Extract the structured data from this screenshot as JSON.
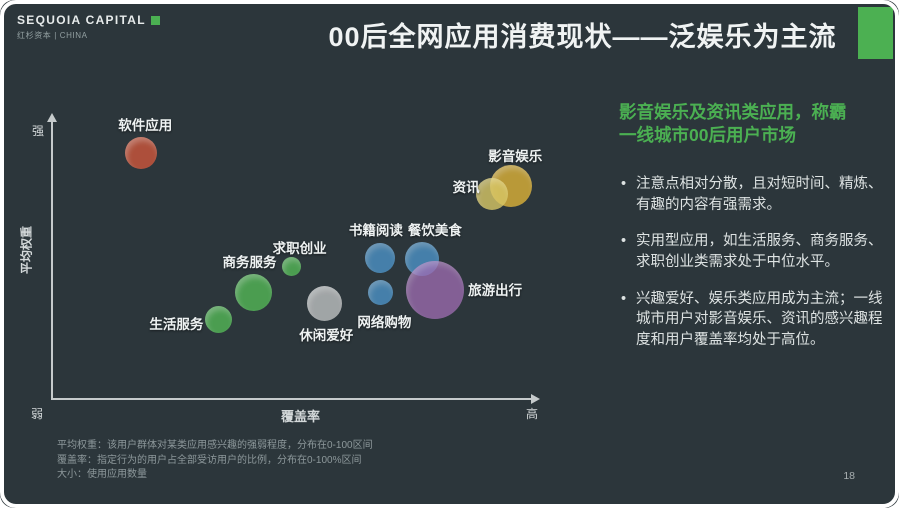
{
  "header": {
    "brand": "SEQUOIA CAPITAL",
    "brand_sub": "红杉资本 | CHINA",
    "title": "00后全网应用消费现状——泛娱乐为主流"
  },
  "page_number": "18",
  "accent": {
    "green": "#4bb052",
    "background": "#2c363b"
  },
  "right_panel": {
    "heading": "影音娱乐及资讯类应用，称霸\n一线城市00后用户市场",
    "bullets": [
      "注意点相对分散，且对短时间、精炼、有趣的内容有强需求。",
      "实用型应用，如生活服务、商务服务、求职创业类需求处于中位水平。",
      "兴趣爱好、娱乐类应用成为主流；一线城市用户对影音娱乐、资讯的感兴趣程度和用户覆盖率均处于高位。"
    ]
  },
  "footnotes": [
    "平均权重：该用户群体对某类应用感兴趣的强弱程度，分布在0-100区间",
    "覆盖率：指定行为的用户占全部受访用户的比例，分布在0-100%区间",
    "大小：使用应用数量"
  ],
  "chart_data": {
    "type": "scatter",
    "title": "00后全网应用消费现状——泛娱乐为主流",
    "xlabel": "覆盖率",
    "ylabel": "平均权重",
    "x_range": [
      0,
      100
    ],
    "y_range": [
      0,
      100
    ],
    "x_end_labels": {
      "low": "弱",
      "high": "高"
    },
    "y_end_labels": {
      "low": "弱",
      "high": "强"
    },
    "grid": false,
    "legend": "none",
    "bubble_size_means": "使用应用数量",
    "series": [
      {
        "name": "软件应用",
        "x": 18.3,
        "y": 86.7,
        "r": 16,
        "color": "#b4513b",
        "opacity": 0.95,
        "label_dx": 4,
        "label_dy": -29
      },
      {
        "name": "生活服务",
        "x": 34.1,
        "y": 28.1,
        "r": 13.5,
        "color": "#4fa953",
        "opacity": 0.9,
        "label_dx": -42,
        "label_dy": 3
      },
      {
        "name": "商务服务",
        "x": 41.3,
        "y": 37.7,
        "r": 18.5,
        "color": "#4fa953",
        "opacity": 0.9,
        "label_dx": -4,
        "label_dy": -32
      },
      {
        "name": "求职创业",
        "x": 49.1,
        "y": 47.0,
        "r": 9.5,
        "color": "#4fa953",
        "opacity": 0.9,
        "label_dx": 8,
        "label_dy": -19
      },
      {
        "name": "休闲爱好",
        "x": 55.8,
        "y": 33.7,
        "r": 17.5,
        "color": "#a7abac",
        "opacity": 0.95,
        "label_dx": 2,
        "label_dy": 30
      },
      {
        "name": "书籍阅读",
        "x": 67.2,
        "y": 49.8,
        "r": 15,
        "color": "#4c92c6",
        "opacity": 0.8,
        "label_dx": -4,
        "label_dy": -29
      },
      {
        "name": "餐饮美食",
        "x": 75.8,
        "y": 49.5,
        "r": 17,
        "color": "#4c92c6",
        "opacity": 0.8,
        "label_dx": 13,
        "label_dy": -30
      },
      {
        "name": "网络购物",
        "x": 67.3,
        "y": 37.7,
        "r": 12.5,
        "color": "#4c92c6",
        "opacity": 0.8,
        "label_dx": 4,
        "label_dy": 28
      },
      {
        "name": "旅游出行",
        "x": 78.5,
        "y": 38.6,
        "r": 29,
        "color": "#a06db4",
        "opacity": 0.75,
        "label_dx": 60,
        "label_dy": -1
      },
      {
        "name": "影音娱乐",
        "x": 94.1,
        "y": 75.1,
        "r": 21,
        "color": "#c9a438",
        "opacity": 0.9,
        "label_dx": 4,
        "label_dy": -31
      },
      {
        "name": "资讯",
        "x": 90.2,
        "y": 72.3,
        "r": 16,
        "color": "#d8c766",
        "opacity": 0.8,
        "label_dx": -26,
        "label_dy": -8
      }
    ]
  }
}
